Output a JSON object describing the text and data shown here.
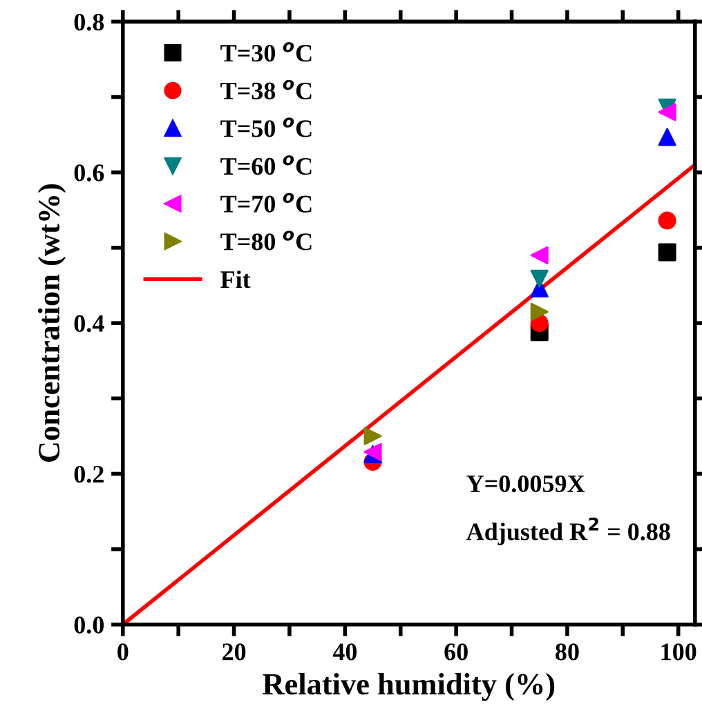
{
  "chart_data": {
    "type": "scatter",
    "xlabel": "Relative humidity (%)",
    "ylabel": "Concentration (wt%)",
    "x": [
      45,
      75,
      98
    ],
    "series": [
      {
        "name": "T=30 $^{o}$C",
        "color": "#000000",
        "marker": "square",
        "values": [
          null,
          0.388,
          0.494
        ]
      },
      {
        "name": "T=38 $^{o}$C",
        "color": "#ff0000",
        "marker": "circle",
        "values": [
          0.216,
          0.4,
          0.536
        ]
      },
      {
        "name": "T=50 $^{o}$C",
        "color": "#0000ff",
        "marker": "triangle",
        "values": [
          0.226,
          0.446,
          0.647
        ]
      },
      {
        "name": "T=60 $^{o}$C",
        "color": "#008080",
        "marker": "triangle_down",
        "values": [
          null,
          0.459,
          0.686
        ]
      },
      {
        "name": "T=70 $^{o}$C",
        "color": "#ff00ff",
        "marker": "triangle_left",
        "values": [
          0.229,
          0.49,
          0.68
        ]
      },
      {
        "name": "T=80 $^{o}$C",
        "color": "#808000",
        "marker": "triangle_right",
        "values": [
          0.25,
          0.415,
          null
        ]
      },
      {
        "name": "Fit",
        "type": "line",
        "color": "#ff0000",
        "x": [
          0,
          103
        ],
        "values": [
          0,
          0.61
        ]
      }
    ],
    "annotations": [
      "Y=0.0059X",
      "Adjusted R$^{2}$ = 0.88"
    ],
    "xlim": [
      0,
      103
    ],
    "ylim": [
      0,
      0.8
    ],
    "xticks": [
      0,
      {
        "value": 10,
        "label": null
      },
      20,
      {
        "value": 30,
        "label": null
      },
      40,
      {
        "value": 50,
        "label": null
      },
      60,
      {
        "value": 70,
        "label": null
      },
      80,
      {
        "value": 90,
        "label": null
      },
      100
    ],
    "yticks": [
      {
        "value": 0,
        "label": "0.0"
      },
      {
        "value": 0.1,
        "label": null
      },
      {
        "value": 0.2,
        "label": "0.2"
      },
      {
        "value": 0.3,
        "label": null
      },
      {
        "value": 0.4,
        "label": "0.4"
      },
      {
        "value": 0.5,
        "label": null
      },
      {
        "value": 0.6,
        "label": "0.6"
      },
      {
        "value": 0.7,
        "label": null
      },
      {
        "value": 0.8,
        "label": "0.8"
      }
    ],
    "legend": "top left",
    "grid": false
  }
}
